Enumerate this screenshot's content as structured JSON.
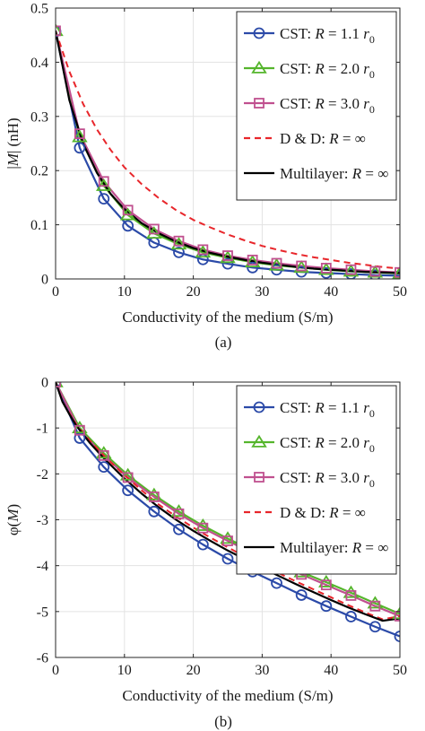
{
  "figure": {
    "panels": [
      {
        "caption": "(a)",
        "xlabel": "Conductivity of the medium (S/m)",
        "ylabel": "|M| (nH)",
        "ylabel_parts": [
          "|",
          "M",
          "| (nH)"
        ],
        "xlim": [
          0,
          50
        ],
        "ylim": [
          0,
          0.5
        ],
        "xticks": [
          0,
          10,
          20,
          30,
          40,
          50
        ],
        "yticks": [
          0,
          0.1,
          0.2,
          0.3,
          0.4,
          0.5
        ],
        "ytick_labels": [
          "0",
          "0.1",
          "0.2",
          "0.3",
          "0.4",
          "0.5"
        ],
        "legend_position": "top-right"
      },
      {
        "caption": "(b)",
        "xlabel": "Conductivity of the medium (S/m)",
        "ylabel": "φ(M)",
        "ylabel_parts": [
          "φ(",
          "M",
          ")"
        ],
        "xlim": [
          0,
          50
        ],
        "ylim": [
          -6,
          0
        ],
        "xticks": [
          0,
          10,
          20,
          30,
          40,
          50
        ],
        "yticks": [
          0,
          -1,
          -2,
          -3,
          -4,
          -5,
          -6
        ],
        "ytick_labels": [
          "0",
          "-1",
          "-2",
          "-3",
          "-4",
          "-5",
          "-6"
        ],
        "legend_position": "top-right"
      }
    ]
  },
  "chart_data": [
    {
      "type": "line",
      "title": "",
      "xlabel": "Conductivity of the medium (S/m)",
      "ylabel": "|M| (nH)",
      "xlim": [
        0,
        50
      ],
      "ylim": [
        0,
        0.5
      ],
      "grid": true,
      "legend": "top-right",
      "series": [
        {
          "name": "CST: R = 1.1 r0",
          "legend": [
            "CST: ",
            "R",
            " = 1.1 ",
            "r",
            "0"
          ],
          "color": "#2b4aa8",
          "marker": "circle",
          "style": "solid",
          "x": [
            0,
            3.5,
            7,
            10.5,
            14.3,
            17.9,
            21.4,
            25,
            28.6,
            32.1,
            35.7,
            39.3,
            42.9,
            46.4,
            50
          ],
          "y": [
            0.457,
            0.242,
            0.148,
            0.098,
            0.067,
            0.049,
            0.036,
            0.028,
            0.021,
            0.017,
            0.013,
            0.011,
            0.009,
            0.007,
            0.006
          ]
        },
        {
          "name": "CST: R = 2.0 r0",
          "legend": [
            "CST: ",
            "R",
            " = 2.0 ",
            "r",
            "0"
          ],
          "color": "#55b52c",
          "marker": "triangle",
          "style": "solid",
          "x": [
            0,
            3.5,
            7,
            10.5,
            14.3,
            17.9,
            21.4,
            25,
            28.6,
            32.1,
            35.7,
            39.3,
            42.9,
            46.4,
            50
          ],
          "y": [
            0.458,
            0.262,
            0.172,
            0.118,
            0.084,
            0.064,
            0.049,
            0.039,
            0.031,
            0.025,
            0.021,
            0.017,
            0.014,
            0.012,
            0.01
          ]
        },
        {
          "name": "CST: R = 3.0 r0",
          "legend": [
            "CST: ",
            "R",
            " = 3.0 ",
            "r",
            "0"
          ],
          "color": "#c0508f",
          "marker": "square",
          "style": "solid",
          "x": [
            0,
            3.5,
            7,
            10.5,
            14.3,
            17.9,
            21.4,
            25,
            28.6,
            32.1,
            35.7,
            39.3,
            42.9,
            46.4,
            50
          ],
          "y": [
            0.458,
            0.268,
            0.18,
            0.127,
            0.092,
            0.07,
            0.054,
            0.043,
            0.035,
            0.029,
            0.024,
            0.02,
            0.017,
            0.014,
            0.012
          ]
        },
        {
          "name": "D & D: R = ∞",
          "legend": [
            "D & D: ",
            "R",
            " = ∞",
            "",
            ""
          ],
          "color": "#e8262b",
          "marker": "none",
          "style": "dashed",
          "x": [
            0,
            2,
            4,
            6,
            8,
            10,
            12.5,
            15,
            17.5,
            20,
            22.5,
            25,
            27.5,
            30,
            32.5,
            35,
            37.5,
            40,
            42.5,
            45,
            47.5,
            50
          ],
          "y": [
            0.458,
            0.383,
            0.323,
            0.276,
            0.238,
            0.206,
            0.175,
            0.149,
            0.127,
            0.109,
            0.095,
            0.082,
            0.071,
            0.061,
            0.053,
            0.046,
            0.04,
            0.035,
            0.03,
            0.026,
            0.022,
            0.019
          ]
        },
        {
          "name": "Multilayer: R = ∞",
          "legend": [
            "Multilayer: ",
            "R",
            " = ∞",
            "",
            ""
          ],
          "color": "#000000",
          "marker": "none",
          "style": "solid",
          "x": [
            0,
            2,
            4,
            6,
            8,
            10,
            12.5,
            15,
            17.5,
            20,
            22.5,
            25,
            27.5,
            30,
            32.5,
            35,
            37.5,
            40,
            42.5,
            45,
            47.5,
            50
          ],
          "y": [
            0.458,
            0.33,
            0.25,
            0.196,
            0.157,
            0.129,
            0.103,
            0.084,
            0.069,
            0.057,
            0.048,
            0.041,
            0.035,
            0.03,
            0.026,
            0.022,
            0.019,
            0.017,
            0.015,
            0.013,
            0.012,
            0.011
          ]
        }
      ]
    },
    {
      "type": "line",
      "title": "",
      "xlabel": "Conductivity of the medium (S/m)",
      "ylabel": "φ(M)",
      "xlim": [
        0,
        50
      ],
      "ylim": [
        -6,
        0
      ],
      "grid": true,
      "legend": "top-right",
      "series": [
        {
          "name": "CST: R = 1.1 r0",
          "legend": [
            "CST: ",
            "R",
            " = 1.1 ",
            "r",
            "0"
          ],
          "color": "#2b4aa8",
          "marker": "circle",
          "style": "solid",
          "x": [
            0,
            3.5,
            7,
            10.5,
            14.3,
            17.9,
            21.4,
            25,
            28.6,
            32.1,
            35.7,
            39.3,
            42.9,
            46.4,
            50
          ],
          "y": [
            0,
            -1.22,
            -1.85,
            -2.36,
            -2.82,
            -3.21,
            -3.54,
            -3.85,
            -4.13,
            -4.38,
            -4.64,
            -4.88,
            -5.11,
            -5.33,
            -5.54
          ]
        },
        {
          "name": "CST: R = 2.0 r0",
          "legend": [
            "CST: ",
            "R",
            " = 2.0 ",
            "r",
            "0"
          ],
          "color": "#55b52c",
          "marker": "triangle",
          "style": "solid",
          "x": [
            0,
            3.5,
            7,
            10.5,
            14.3,
            17.9,
            21.4,
            25,
            28.6,
            32.1,
            35.7,
            39.3,
            42.9,
            46.4,
            50
          ],
          "y": [
            0,
            -1.0,
            -1.55,
            -2.03,
            -2.46,
            -2.82,
            -3.13,
            -3.41,
            -3.67,
            -3.91,
            -4.14,
            -4.36,
            -4.59,
            -4.82,
            -5.05
          ]
        },
        {
          "name": "CST: R = 3.0 r0",
          "legend": [
            "CST: ",
            "R",
            " = 3.0 ",
            "r",
            "0"
          ],
          "color": "#c0508f",
          "marker": "square",
          "style": "solid",
          "x": [
            0,
            3.5,
            7,
            10.5,
            14.3,
            17.9,
            21.4,
            25,
            28.6,
            32.1,
            35.7,
            39.3,
            42.9,
            46.4,
            50
          ],
          "y": [
            0,
            -1.05,
            -1.6,
            -2.08,
            -2.5,
            -2.87,
            -3.18,
            -3.46,
            -3.72,
            -3.96,
            -4.19,
            -4.42,
            -4.65,
            -4.88,
            -5.1
          ]
        },
        {
          "name": "D & D: R = ∞",
          "legend": [
            "D & D: ",
            "R",
            " = ∞",
            "",
            ""
          ],
          "color": "#e8262b",
          "marker": "none",
          "style": "dashed",
          "x": [
            0,
            1,
            2,
            3,
            5,
            7,
            10,
            12.5,
            15,
            17.5,
            20,
            22.5,
            25,
            27.5,
            30,
            32.5,
            35,
            37.5,
            40,
            42.5,
            45,
            47.5,
            50
          ],
          "y": [
            0,
            -0.42,
            -0.68,
            -0.92,
            -1.28,
            -1.6,
            -2.03,
            -2.36,
            -2.67,
            -2.93,
            -3.17,
            -3.39,
            -3.6,
            -3.8,
            -3.99,
            -4.17,
            -4.35,
            -4.52,
            -4.69,
            -4.86,
            -5.02,
            -5.17,
            -5.1
          ]
        },
        {
          "name": "Multilayer: R = ∞",
          "legend": [
            "Multilayer: ",
            "R",
            " = ∞",
            "",
            ""
          ],
          "color": "#000000",
          "marker": "none",
          "style": "solid",
          "x": [
            0,
            1,
            2,
            3,
            5,
            7,
            10,
            12.5,
            15,
            17.5,
            20,
            22.5,
            25,
            27.5,
            30,
            32.5,
            35,
            37.5,
            40,
            42.5,
            45,
            47.5,
            50
          ],
          "y": [
            0,
            -0.43,
            -0.7,
            -0.95,
            -1.33,
            -1.66,
            -2.1,
            -2.43,
            -2.73,
            -3.0,
            -3.24,
            -3.46,
            -3.67,
            -3.86,
            -4.05,
            -4.23,
            -4.41,
            -4.58,
            -4.75,
            -4.91,
            -5.06,
            -5.2,
            -5.15
          ]
        }
      ]
    }
  ]
}
